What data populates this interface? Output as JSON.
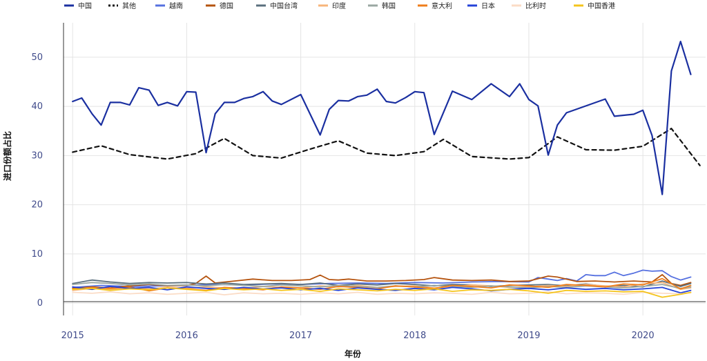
{
  "chart_data": {
    "type": "line",
    "xlabel": "年份",
    "ylabel": "进口份额占比",
    "xlim": [
      2014.92,
      2020.55
    ],
    "ylim": [
      -2.5,
      57
    ],
    "yticks": [
      0,
      10,
      20,
      30,
      40,
      50
    ],
    "xticks": [
      2015,
      2016,
      2017,
      2018,
      2019,
      2020
    ],
    "grid": true,
    "legend_position": "top",
    "series": [
      {
        "name": "中国",
        "color": "#1a2fa0",
        "dash": "",
        "x": [
          2015.0,
          2015.08,
          2015.17,
          2015.25,
          2015.33,
          2015.42,
          2015.5,
          2015.58,
          2015.67,
          2015.75,
          2015.83,
          2015.92,
          2016.0,
          2016.08,
          2016.17,
          2016.25,
          2016.33,
          2016.42,
          2016.5,
          2016.58,
          2016.67,
          2016.75,
          2016.83,
          2017.0,
          2017.17,
          2017.25,
          2017.33,
          2017.42,
          2017.5,
          2017.58,
          2017.67,
          2017.75,
          2017.83,
          2017.92,
          2018.0,
          2018.08,
          2018.17,
          2018.33,
          2018.5,
          2018.67,
          2018.83,
          2018.92,
          2019.0,
          2019.08,
          2019.17,
          2019.25,
          2019.33,
          2019.67,
          2019.75,
          2019.92,
          2020.0,
          2020.08,
          2020.17,
          2020.25,
          2020.33,
          2020.42
        ],
        "y": [
          41.0,
          41.7,
          38.5,
          36.2,
          40.8,
          40.8,
          40.3,
          43.8,
          43.3,
          40.2,
          40.8,
          40.1,
          43.0,
          42.9,
          30.6,
          38.5,
          40.8,
          40.8,
          41.6,
          42.0,
          43.0,
          41.1,
          40.4,
          42.4,
          34.2,
          39.4,
          41.2,
          41.1,
          42.0,
          42.3,
          43.5,
          41.0,
          40.7,
          41.8,
          43.0,
          42.8,
          34.3,
          43.1,
          41.4,
          44.6,
          42.0,
          44.6,
          41.4,
          40.1,
          30.1,
          36.2,
          38.7,
          41.5,
          38.0,
          38.4,
          39.2,
          34.1,
          22.1,
          47.2,
          53.2,
          46.5
        ]
      },
      {
        "name": "其他",
        "color": "#111111",
        "dash": "6,5",
        "x": [
          2015.0,
          2015.25,
          2015.5,
          2015.83,
          2016.08,
          2016.33,
          2016.58,
          2016.83,
          2017.08,
          2017.33,
          2017.58,
          2017.83,
          2018.08,
          2018.25,
          2018.5,
          2018.83,
          2019.0,
          2019.25,
          2019.5,
          2019.75,
          2020.0,
          2020.25,
          2020.5
        ],
        "y": [
          30.7,
          32.0,
          30.2,
          29.3,
          30.4,
          33.5,
          30.0,
          29.5,
          31.3,
          33.0,
          30.5,
          30.0,
          30.8,
          33.3,
          29.8,
          29.3,
          29.6,
          33.8,
          31.2,
          31.1,
          31.9,
          35.5,
          28.0
        ]
      },
      {
        "name": "越南",
        "color": "#5570e0",
        "dash": "",
        "x": [
          2015.0,
          2015.25,
          2015.5,
          2015.75,
          2016.0,
          2016.25,
          2016.5,
          2016.75,
          2017.0,
          2017.25,
          2017.5,
          2017.75,
          2018.0,
          2018.25,
          2018.5,
          2018.75,
          2019.0,
          2019.08,
          2019.17,
          2019.25,
          2019.33,
          2019.42,
          2019.5,
          2019.58,
          2019.67,
          2019.75,
          2019.83,
          2019.92,
          2020.0,
          2020.08,
          2020.17,
          2020.25,
          2020.33,
          2020.42
        ],
        "y": [
          3.2,
          3.6,
          3.4,
          3.5,
          3.6,
          3.8,
          3.7,
          3.9,
          3.8,
          4.0,
          4.1,
          4.0,
          4.2,
          4.1,
          4.3,
          4.4,
          4.3,
          5.2,
          4.9,
          4.6,
          5.0,
          4.5,
          5.8,
          5.6,
          5.6,
          6.3,
          5.6,
          6.1,
          6.7,
          6.5,
          6.6,
          5.4,
          4.7,
          5.3
        ]
      },
      {
        "name": "德国",
        "color": "#b5530e",
        "dash": "",
        "x": [
          2015.0,
          2015.17,
          2015.33,
          2015.5,
          2015.67,
          2015.83,
          2016.0,
          2016.08,
          2016.17,
          2016.25,
          2016.42,
          2016.58,
          2016.75,
          2016.92,
          2017.08,
          2017.17,
          2017.25,
          2017.33,
          2017.42,
          2017.58,
          2017.75,
          2017.92,
          2018.08,
          2018.17,
          2018.33,
          2018.5,
          2018.67,
          2018.83,
          2019.0,
          2019.17,
          2019.25,
          2019.42,
          2019.58,
          2019.75,
          2019.92,
          2020.08,
          2020.17,
          2020.25,
          2020.33,
          2020.42
        ],
        "y": [
          3.0,
          3.3,
          3.1,
          3.5,
          3.8,
          3.5,
          3.6,
          4.0,
          5.5,
          4.1,
          4.5,
          4.9,
          4.6,
          4.6,
          4.8,
          5.7,
          4.8,
          4.7,
          4.9,
          4.5,
          4.5,
          4.6,
          4.8,
          5.2,
          4.7,
          4.6,
          4.7,
          4.4,
          4.5,
          5.5,
          5.3,
          4.4,
          4.5,
          4.3,
          4.5,
          4.3,
          5.8,
          4.0,
          3.6,
          4.2
        ]
      },
      {
        "name": "中国台湾",
        "color": "#5a6f7d",
        "dash": "",
        "x": [
          2015.0,
          2015.17,
          2015.33,
          2015.5,
          2015.67,
          2015.83,
          2016.0,
          2016.17,
          2016.33,
          2016.5,
          2016.67,
          2016.83,
          2017.0,
          2017.17,
          2017.33,
          2017.5,
          2017.67,
          2017.83,
          2018.0,
          2018.17,
          2018.33,
          2018.5,
          2018.67,
          2018.83,
          2019.0,
          2019.17,
          2019.33,
          2019.5,
          2019.67,
          2019.83,
          2020.0,
          2020.17,
          2020.33,
          2020.42
        ],
        "y": [
          4.0,
          4.7,
          4.3,
          4.0,
          4.2,
          4.1,
          4.2,
          3.9,
          4.1,
          3.8,
          3.9,
          4.0,
          3.8,
          4.1,
          3.6,
          3.9,
          3.7,
          4.0,
          3.8,
          3.5,
          3.8,
          3.7,
          3.4,
          3.6,
          3.7,
          3.8,
          3.5,
          3.9,
          3.4,
          3.6,
          3.3,
          4.5,
          3.4,
          4.0
        ]
      },
      {
        "name": "印度",
        "color": "#f7b57a",
        "dash": "",
        "x": [
          2015.0,
          2015.17,
          2015.33,
          2015.5,
          2015.67,
          2015.83,
          2016.0,
          2016.17,
          2016.33,
          2016.5,
          2016.67,
          2016.83,
          2017.0,
          2017.17,
          2017.33,
          2017.5,
          2017.67,
          2017.83,
          2018.0,
          2018.17,
          2018.33,
          2018.5,
          2018.67,
          2018.83,
          2019.0,
          2019.17,
          2019.33,
          2019.5,
          2019.67,
          2019.83,
          2020.0,
          2020.17,
          2020.33,
          2020.42
        ],
        "y": [
          2.6,
          3.0,
          2.8,
          3.1,
          2.9,
          3.2,
          3.0,
          3.3,
          3.1,
          3.0,
          3.4,
          3.2,
          3.1,
          3.5,
          3.3,
          3.6,
          3.2,
          3.4,
          3.5,
          3.1,
          3.3,
          3.7,
          3.5,
          3.2,
          3.3,
          3.6,
          3.4,
          3.8,
          3.5,
          3.3,
          3.9,
          4.2,
          2.8,
          3.1
        ]
      },
      {
        "name": "韩国",
        "color": "#9aa7a2",
        "dash": "",
        "x": [
          2015.0,
          2015.17,
          2015.33,
          2015.5,
          2015.67,
          2015.83,
          2016.0,
          2016.17,
          2016.33,
          2016.5,
          2016.67,
          2016.83,
          2017.0,
          2017.17,
          2017.33,
          2017.5,
          2017.67,
          2017.83,
          2018.0,
          2018.17,
          2018.33,
          2018.5,
          2018.67,
          2018.83,
          2019.0,
          2019.17,
          2019.33,
          2019.5,
          2019.67,
          2019.83,
          2020.0,
          2020.17,
          2020.33,
          2020.42
        ],
        "y": [
          3.8,
          4.2,
          4.0,
          3.7,
          3.9,
          3.6,
          3.7,
          3.5,
          3.8,
          3.6,
          3.4,
          3.7,
          3.5,
          3.3,
          3.6,
          3.4,
          3.2,
          3.5,
          3.3,
          3.6,
          3.4,
          3.2,
          3.5,
          3.3,
          3.1,
          3.4,
          3.2,
          3.5,
          3.3,
          3.1,
          3.4,
          3.8,
          3.0,
          3.3
        ]
      },
      {
        "name": "意大利",
        "color": "#ef7d1a",
        "dash": "",
        "x": [
          2015.0,
          2015.17,
          2015.33,
          2015.5,
          2015.67,
          2015.83,
          2016.0,
          2016.17,
          2016.33,
          2016.5,
          2016.67,
          2016.83,
          2017.0,
          2017.17,
          2017.33,
          2017.5,
          2017.67,
          2017.83,
          2018.0,
          2018.17,
          2018.33,
          2018.5,
          2018.67,
          2018.83,
          2019.0,
          2019.17,
          2019.33,
          2019.5,
          2019.67,
          2019.83,
          2020.0,
          2020.17,
          2020.33,
          2020.42
        ],
        "y": [
          2.9,
          3.2,
          3.0,
          3.3,
          2.5,
          3.1,
          2.9,
          2.6,
          3.2,
          3.0,
          2.7,
          3.3,
          3.1,
          2.8,
          3.4,
          3.2,
          2.9,
          3.5,
          3.3,
          3.0,
          3.6,
          3.4,
          3.1,
          3.7,
          3.5,
          3.2,
          3.8,
          3.6,
          3.3,
          3.9,
          3.7,
          5.0,
          2.9,
          3.6
        ]
      },
      {
        "name": "日本",
        "color": "#2442d8",
        "dash": "",
        "x": [
          2015.0,
          2015.17,
          2015.33,
          2015.5,
          2015.67,
          2015.83,
          2016.0,
          2016.17,
          2016.33,
          2016.5,
          2016.67,
          2016.83,
          2017.0,
          2017.17,
          2017.33,
          2017.5,
          2017.67,
          2017.83,
          2018.0,
          2018.17,
          2018.33,
          2018.5,
          2018.67,
          2018.83,
          2019.0,
          2019.17,
          2019.33,
          2019.5,
          2019.67,
          2019.83,
          2020.0,
          2020.17,
          2020.33,
          2020.42
        ],
        "y": [
          3.3,
          2.8,
          3.4,
          3.0,
          3.2,
          2.7,
          3.3,
          3.0,
          2.8,
          3.2,
          2.9,
          3.1,
          2.7,
          3.0,
          2.6,
          3.1,
          2.8,
          2.6,
          3.0,
          2.7,
          3.2,
          2.9,
          2.5,
          2.8,
          3.0,
          2.7,
          3.1,
          2.8,
          3.0,
          2.7,
          2.9,
          3.2,
          2.1,
          2.6
        ]
      },
      {
        "name": "比利时",
        "color": "#fbdcc6",
        "dash": "",
        "x": [
          2015.0,
          2015.17,
          2015.33,
          2015.5,
          2015.67,
          2015.83,
          2016.0,
          2016.17,
          2016.33,
          2016.5,
          2016.67,
          2016.83,
          2017.0,
          2017.17,
          2017.33,
          2017.5,
          2017.67,
          2017.83,
          2018.0,
          2018.17,
          2018.33,
          2018.5,
          2018.67,
          2018.83,
          2019.0,
          2019.17,
          2019.33,
          2019.5,
          2019.67,
          2019.83,
          2020.0,
          2020.17,
          2020.33,
          2020.42
        ],
        "y": [
          2.2,
          2.0,
          2.3,
          1.9,
          2.1,
          1.8,
          2.0,
          2.2,
          1.7,
          2.1,
          1.9,
          2.0,
          1.8,
          2.1,
          1.9,
          2.2,
          1.8,
          2.0,
          1.9,
          2.1,
          2.0,
          1.8,
          2.2,
          1.9,
          2.0,
          2.3,
          1.9,
          2.1,
          2.0,
          1.8,
          2.2,
          2.0,
          1.9,
          2.1
        ]
      },
      {
        "name": "中国香港",
        "color": "#f4c41c",
        "dash": "",
        "x": [
          2015.0,
          2015.17,
          2015.33,
          2015.5,
          2015.67,
          2015.83,
          2016.0,
          2016.17,
          2016.33,
          2016.5,
          2016.67,
          2016.83,
          2017.0,
          2017.17,
          2017.33,
          2017.5,
          2017.67,
          2017.83,
          2018.0,
          2018.17,
          2018.33,
          2018.5,
          2018.67,
          2018.83,
          2019.0,
          2019.17,
          2019.33,
          2019.5,
          2019.67,
          2019.83,
          2020.0,
          2020.17,
          2020.33,
          2020.42
        ],
        "y": [
          2.8,
          3.0,
          2.6,
          2.9,
          2.7,
          3.1,
          2.8,
          2.5,
          3.0,
          2.7,
          2.9,
          2.6,
          2.8,
          2.4,
          2.9,
          2.7,
          2.5,
          2.8,
          2.6,
          2.9,
          2.4,
          2.7,
          2.6,
          2.8,
          2.5,
          2.0,
          2.6,
          2.4,
          2.5,
          2.3,
          2.4,
          1.2,
          1.8,
          2.2
        ]
      }
    ]
  }
}
